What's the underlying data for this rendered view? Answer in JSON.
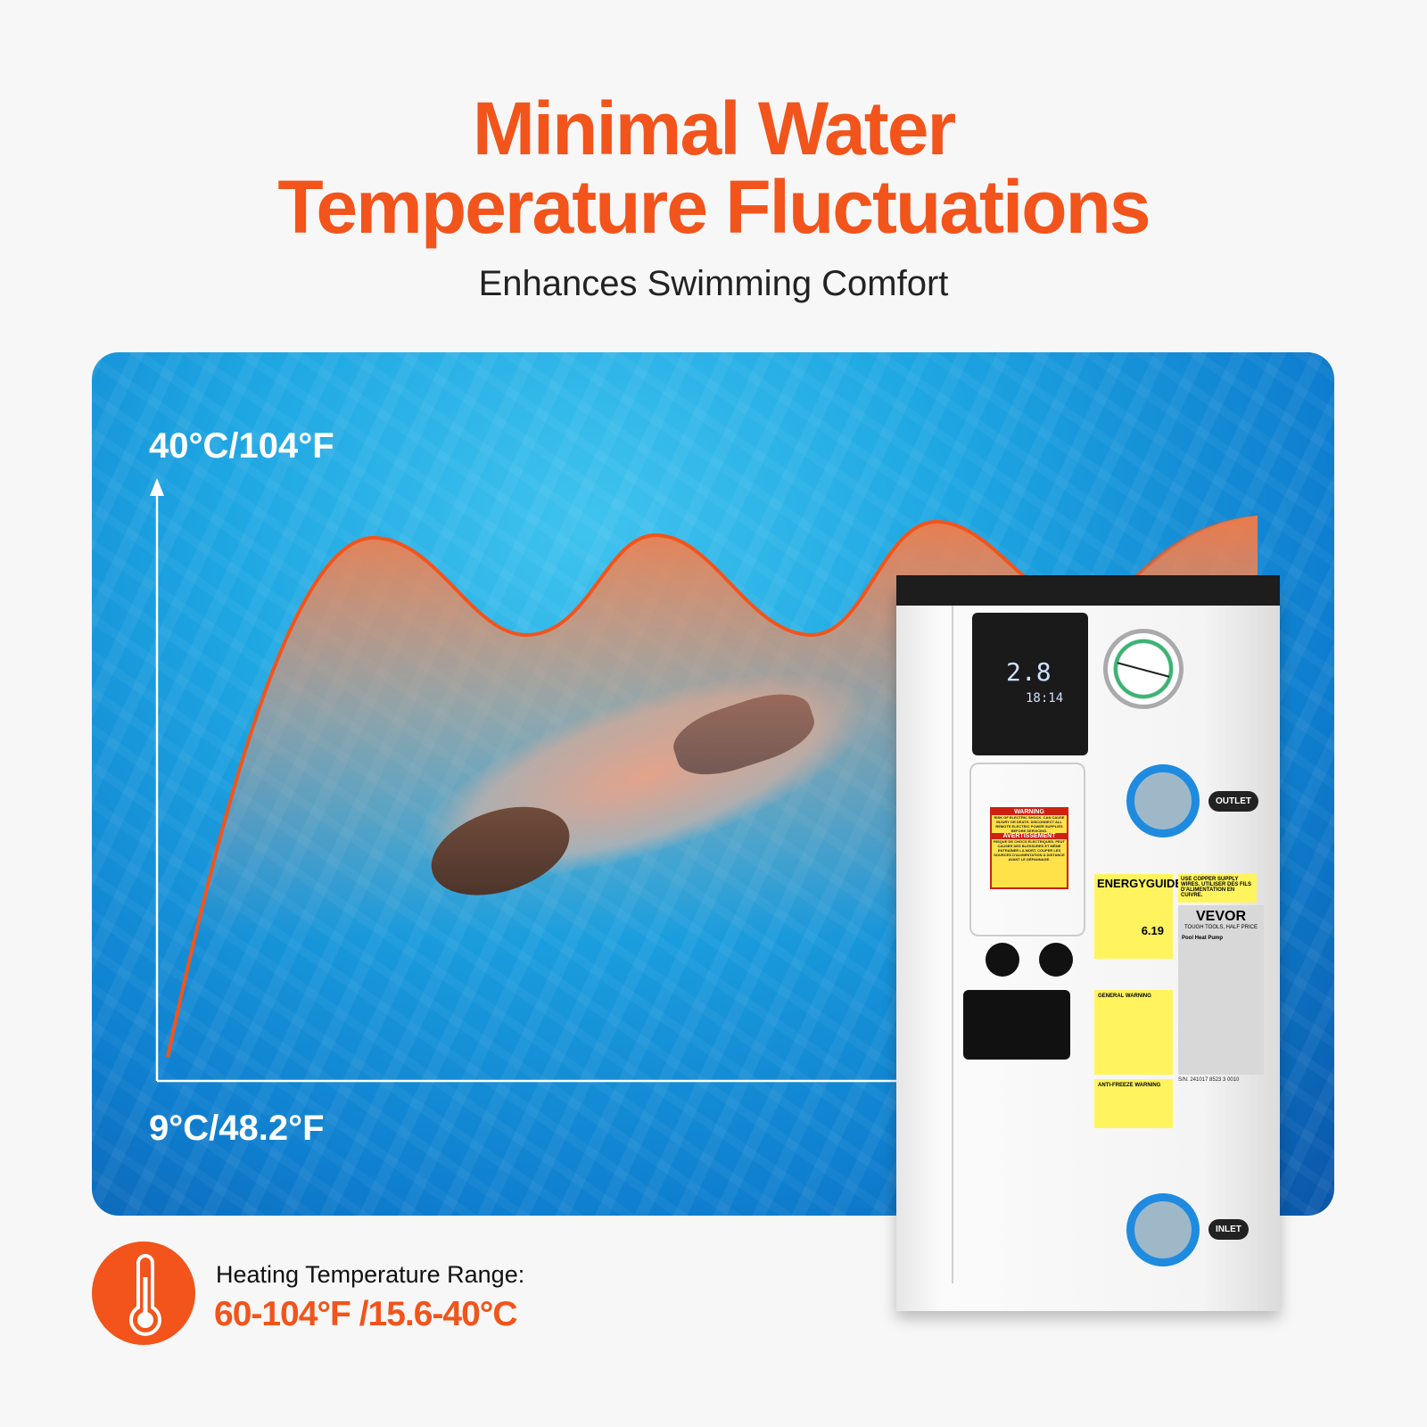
{
  "header": {
    "title_line1": "Minimal Water",
    "title_line2": "Temperature Fluctuations",
    "subtitle": "Enhances Swimming Comfort"
  },
  "graphic": {
    "top_label": "40°C/104°F",
    "bottom_label": "9°C/48.2°F",
    "curve_color": "#f2541b"
  },
  "product": {
    "brand": "VEVOR",
    "display_temp": "2.8",
    "display_clock": "18:14",
    "warning_title": "WARNING",
    "warning_text": "RISK OF ELECTRIC SHOCK. CAN CAUSE INJURY OR DEATH. DISCONNECT ALL REMOTE ELECTRIC POWER SUPPLIES BEFORE SERVICING.",
    "warning_title_fr": "AVERTISSEMENT",
    "warning_text_fr": "RISQUE DE CHOCS ÉLECTRIQUES. PEUT CAUSER DES BLESSURES ET MÊME ENTRAÎNER LA MORT. COUPER LES SOURCES D'ALIMENTATION À DISTANCE AVANT LE DÉPANNAGE.",
    "energyguide": "ENERGYGUIDE",
    "efficiency": "6.19",
    "copper_note": "USE COPPER SUPPLY WIRES. UTILISER DES FILS D'ALIMENTATION EN CUIVRE.",
    "brand_tagline": "TOUGH TOOLS, HALF PRICE",
    "product_name": "Pool Heat Pump",
    "general_warning": "GENERAL WARNING",
    "antifreeze_warning": "ANTI-FREEZE WARNING",
    "serial": "S/N: 241017 8523 3 0010",
    "outlet": "OUTLET",
    "inlet": "INLET"
  },
  "feature": {
    "icon": "thermometer-icon",
    "label": "Heating Temperature Range:",
    "value": "60-104°F /15.6-40°C",
    "accent": "#f2541b"
  }
}
